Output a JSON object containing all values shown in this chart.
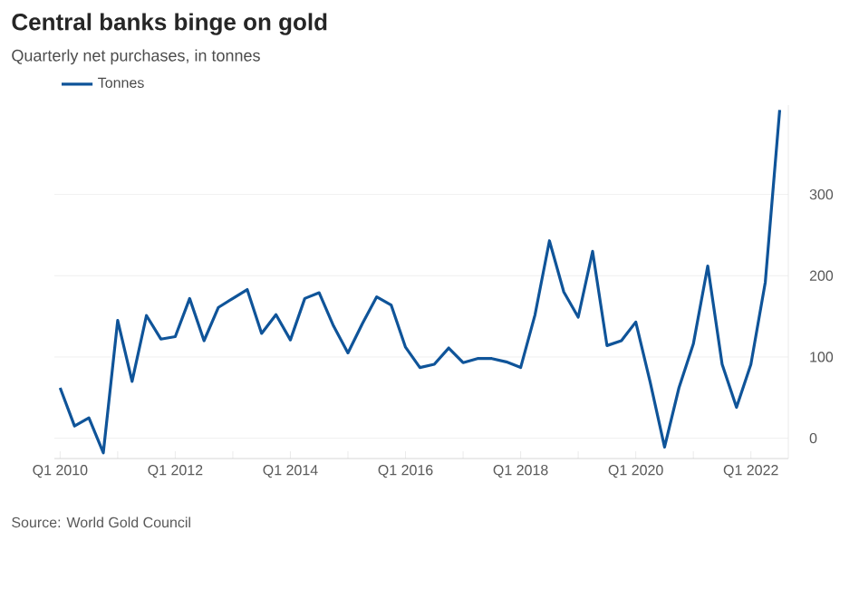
{
  "chart_data": {
    "type": "line",
    "title": "Central banks binge on gold",
    "subtitle": "Quarterly net purchases, in tonnes",
    "annotations": [
      "Source: World Gold Council"
    ],
    "categories": [
      "Q1 2010",
      null,
      null,
      null,
      null,
      null,
      null,
      null,
      "Q1 2012",
      null,
      null,
      null,
      null,
      null,
      null,
      null,
      "Q1 2014",
      null,
      null,
      null,
      null,
      null,
      null,
      null,
      "Q1 2016",
      null,
      null,
      null,
      null,
      null,
      null,
      null,
      "Q1 2018",
      null,
      null,
      null,
      null,
      null,
      null,
      null,
      "Q1 2020",
      null,
      null,
      null,
      null,
      null,
      null,
      null,
      "Q1 2022",
      null,
      null
    ],
    "series": [
      {
        "name": "Tonnes",
        "color": "#0f5499",
        "values": [
          62,
          15,
          25,
          -18,
          145,
          70,
          151,
          122,
          125,
          172,
          120,
          161,
          172,
          183,
          129,
          152,
          121,
          172,
          179,
          138,
          105,
          141,
          174,
          164,
          112,
          87,
          91,
          111,
          93,
          98,
          98,
          94,
          87,
          152,
          243,
          180,
          149,
          230,
          114,
          120,
          143,
          69,
          -11,
          62,
          116,
          212,
          91,
          38,
          91,
          192,
          404
        ]
      }
    ],
    "ylim": [
      -25,
      410
    ],
    "yticks": [
      0,
      100,
      200,
      300
    ],
    "grid": "y",
    "legend": "top left",
    "marker": "none",
    "line_style": "solid"
  }
}
